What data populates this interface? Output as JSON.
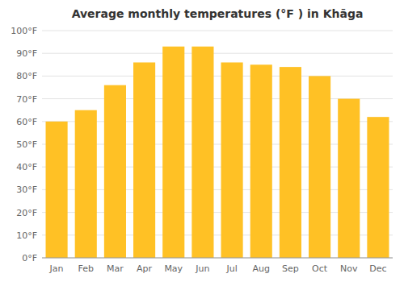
{
  "chart_data": {
    "type": "bar",
    "title": "Average monthly temperatures (°F ) in Khāga",
    "categories": [
      "Jan",
      "Feb",
      "Mar",
      "Apr",
      "May",
      "Jun",
      "Jul",
      "Aug",
      "Sep",
      "Oct",
      "Nov",
      "Dec"
    ],
    "values": [
      60,
      65,
      76,
      86,
      93,
      93,
      86,
      85,
      84,
      80,
      70,
      62
    ],
    "color": "#FFC125",
    "ylim": [
      0,
      100
    ],
    "yticks": [
      {
        "value": 0,
        "label": "0°F"
      },
      {
        "value": 10,
        "label": "10°F"
      },
      {
        "value": 20,
        "label": "20°F"
      },
      {
        "value": 30,
        "label": "30°F"
      },
      {
        "value": 40,
        "label": "40°F"
      },
      {
        "value": 50,
        "label": "50°F"
      },
      {
        "value": 60,
        "label": "60°F"
      },
      {
        "value": 70,
        "label": "70°F"
      },
      {
        "value": 80,
        "label": "80°F"
      },
      {
        "value": 90,
        "label": "90°F"
      },
      {
        "value": 100,
        "label": "100°F"
      }
    ],
    "grid": true
  }
}
